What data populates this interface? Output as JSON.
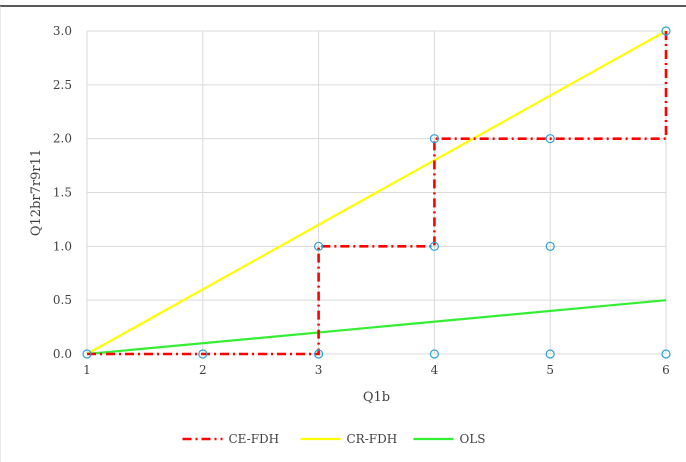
{
  "chart_data": {
    "type": "scatter",
    "title": "",
    "xlabel": "Q1b",
    "ylabel": "Q12br7r9r11",
    "xlim": [
      1,
      6
    ],
    "ylim": [
      0,
      3
    ],
    "x_ticks": [
      "1",
      "2",
      "3",
      "4",
      "5",
      "6"
    ],
    "y_ticks": [
      "0.0",
      "0.5",
      "1.0",
      "1.5",
      "2.0",
      "2.5",
      "3.0"
    ],
    "grid": true,
    "legend_position": "bottom",
    "points": [
      {
        "x": 1,
        "y": 0
      },
      {
        "x": 2,
        "y": 0
      },
      {
        "x": 3,
        "y": 0
      },
      {
        "x": 4,
        "y": 0
      },
      {
        "x": 5,
        "y": 0
      },
      {
        "x": 6,
        "y": 0
      },
      {
        "x": 3,
        "y": 1
      },
      {
        "x": 4,
        "y": 1
      },
      {
        "x": 5,
        "y": 1
      },
      {
        "x": 4,
        "y": 2
      },
      {
        "x": 5,
        "y": 2
      },
      {
        "x": 6,
        "y": 3
      }
    ],
    "series": [
      {
        "name": "CE-FDH",
        "color": "#ff0000",
        "style": "dash-dot",
        "points": [
          [
            1,
            0
          ],
          [
            3,
            0
          ],
          [
            3,
            1
          ],
          [
            4,
            1
          ],
          [
            4,
            2
          ],
          [
            6,
            2
          ],
          [
            6,
            3
          ]
        ]
      },
      {
        "name": "CR-FDH",
        "color": "#ffff00",
        "style": "solid",
        "points": [
          [
            1,
            0
          ],
          [
            6,
            3
          ]
        ]
      },
      {
        "name": "OLS",
        "color": "#33ee33",
        "style": "solid",
        "points": [
          [
            1,
            0
          ],
          [
            6,
            0.5
          ]
        ]
      }
    ],
    "point_color": "#2f9fd8"
  }
}
